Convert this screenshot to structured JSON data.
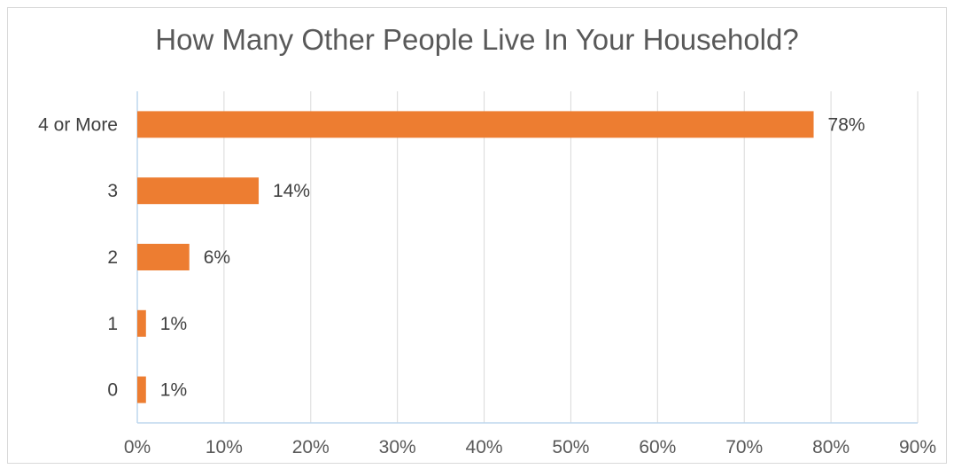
{
  "chart_data": {
    "type": "bar",
    "orientation": "horizontal",
    "title": "How Many Other People Live In Your Household?",
    "categories": [
      "4  or More",
      "3",
      "2",
      "1",
      "0"
    ],
    "values": [
      78,
      14,
      6,
      1,
      1
    ],
    "data_labels": [
      "78%",
      "14%",
      "6%",
      "1%",
      "1%"
    ],
    "x_ticks": [
      "0%",
      "10%",
      "20%",
      "30%",
      "40%",
      "50%",
      "60%",
      "70%",
      "80%",
      "90%"
    ],
    "xlim": [
      0,
      90
    ],
    "xlabel": "",
    "ylabel": "",
    "grid": "vertical",
    "legend": "none",
    "colors": {
      "bar": "#ED7D31",
      "grid": "#d9d9d9",
      "axis": "#bdd7ee",
      "text": "#595959"
    }
  }
}
